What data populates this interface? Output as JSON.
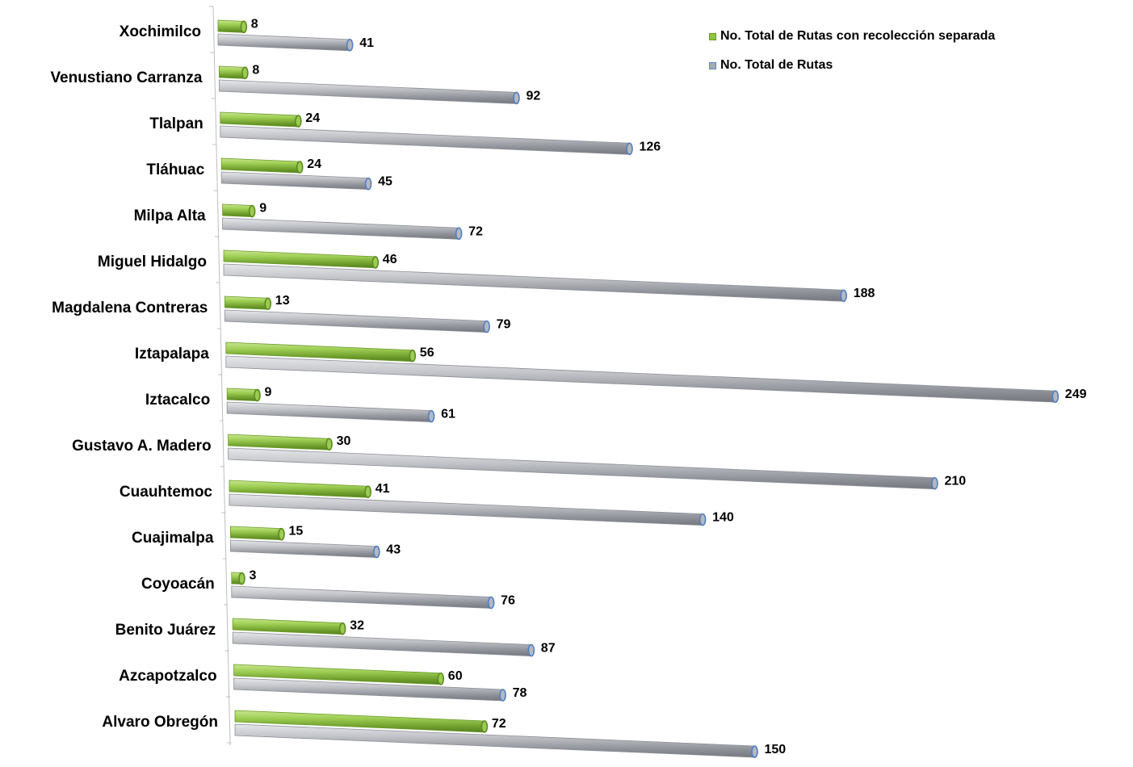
{
  "chart_data": {
    "type": "bar",
    "orientation": "horizontal",
    "categories": [
      "Xochimilco",
      "Venustiano Carranza",
      "Tlalpan",
      "Tláhuac",
      "Milpa Alta",
      "Miguel Hidalgo",
      "Magdalena Contreras",
      "Iztapalapa",
      "Iztacalco",
      "Gustavo A. Madero",
      "Cuauhtemoc",
      "Cuajimalpa",
      "Coyoacán",
      "Benito Juárez",
      "Azcapotzalco",
      "Alvaro Obregón"
    ],
    "series": [
      {
        "name": "No. Total de Rutas con recolección separada",
        "color": "#8dc63f",
        "values": [
          8,
          8,
          24,
          24,
          9,
          46,
          13,
          56,
          9,
          30,
          41,
          15,
          3,
          32,
          60,
          72
        ]
      },
      {
        "name": "No. Total de Rutas",
        "color": "#a8aab0",
        "values": [
          41,
          92,
          126,
          45,
          72,
          188,
          79,
          249,
          61,
          210,
          140,
          43,
          76,
          87,
          78,
          150
        ]
      }
    ],
    "xlim": [
      0,
      249
    ],
    "legend_position": "top-right",
    "grid": false,
    "style": "3d-cylinder"
  }
}
